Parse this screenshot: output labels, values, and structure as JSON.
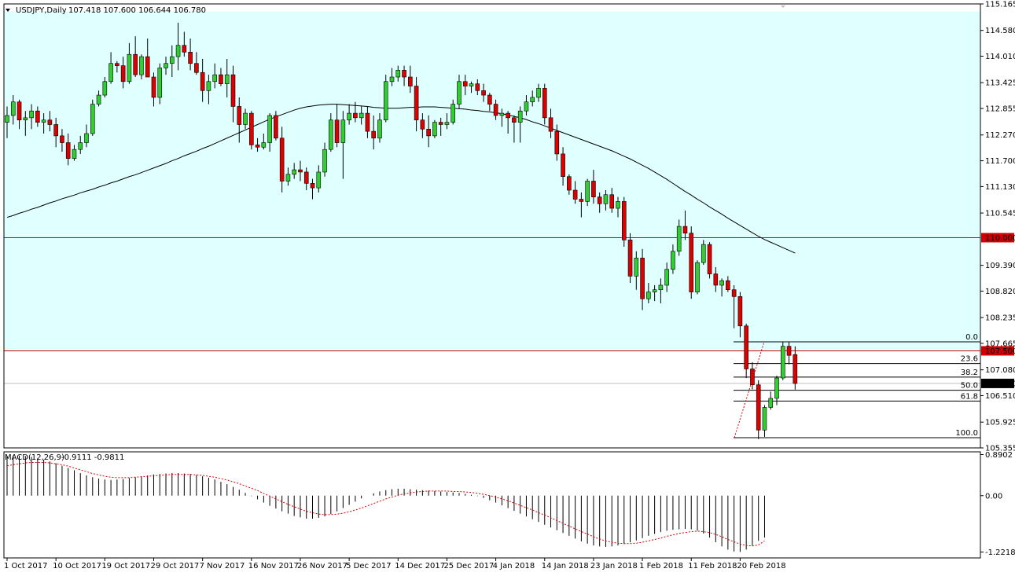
{
  "header": {
    "symbol": "USDJPY,Daily",
    "ohlc": "107.418 107.600 106.644 106.780"
  },
  "macd_header": {
    "name": "MACD(12,26,9)",
    "values": "-0.9111 -0.9811"
  },
  "colors": {
    "bull": "#32cd32",
    "bear": "#dc0000",
    "zone": "#e0ffff",
    "level_line": "#cc0000",
    "ma_line": "#000000",
    "signal_line": "#dc0000"
  },
  "chart_data": [
    {
      "type": "candlestick",
      "ylim": [
        105.355,
        115.165
      ],
      "y_ticks": [
        "115.165",
        "114.580",
        "114.010",
        "113.425",
        "112.855",
        "112.270",
        "111.700",
        "111.130",
        "110.545",
        "109.390",
        "108.820",
        "108.235",
        "107.665",
        "107.080",
        "106.510",
        "105.925",
        "105.355"
      ],
      "x_ticks": [
        "1 Oct 2017",
        "10 Oct 2017",
        "19 Oct 2017",
        "29 Oct 2017",
        "7 Nov 2017",
        "16 Nov 2017",
        "26 Nov 2017",
        "5 Dec 2017",
        "14 Dec 2017",
        "25 Dec 2017",
        "4 Jan 2018",
        "14 Jan 2018",
        "23 Jan 2018",
        "1 Feb 2018",
        "11 Feb 2018",
        "20 Feb 2018"
      ],
      "x_tick_index": [
        0,
        8,
        16,
        24,
        32,
        40,
        48,
        56,
        64,
        72,
        80,
        88,
        96,
        104,
        112,
        120
      ],
      "candles": [
        [
          112.55,
          112.9,
          112.2,
          112.7
        ],
        [
          112.7,
          113.15,
          112.5,
          113.0
        ],
        [
          113.0,
          113.05,
          112.4,
          112.6
        ],
        [
          112.6,
          112.8,
          112.25,
          112.65
        ],
        [
          112.65,
          112.95,
          112.4,
          112.8
        ],
        [
          112.8,
          112.9,
          112.45,
          112.55
        ],
        [
          112.55,
          112.75,
          112.3,
          112.6
        ],
        [
          112.6,
          112.8,
          112.35,
          112.5
        ],
        [
          112.5,
          112.65,
          112.0,
          112.25
        ],
        [
          112.25,
          112.4,
          111.9,
          112.1
        ],
        [
          112.1,
          112.3,
          111.6,
          111.75
        ],
        [
          111.75,
          112.05,
          111.7,
          111.95
        ],
        [
          111.95,
          112.25,
          111.85,
          112.1
        ],
        [
          112.1,
          112.5,
          112.0,
          112.3
        ],
        [
          112.3,
          113.05,
          112.25,
          112.95
        ],
        [
          112.95,
          113.25,
          112.9,
          113.15
        ],
        [
          113.15,
          113.55,
          113.1,
          113.45
        ],
        [
          113.45,
          114.1,
          113.4,
          113.85
        ],
        [
          113.85,
          113.9,
          113.65,
          113.8
        ],
        [
          113.8,
          114.0,
          113.3,
          113.45
        ],
        [
          113.45,
          114.3,
          113.4,
          114.05
        ],
        [
          114.05,
          114.45,
          113.55,
          113.6
        ],
        [
          113.6,
          114.05,
          113.5,
          114.0
        ],
        [
          114.0,
          114.4,
          113.6,
          113.55
        ],
        [
          113.55,
          113.65,
          112.9,
          113.1
        ],
        [
          113.1,
          113.85,
          112.95,
          113.75
        ],
        [
          113.75,
          114.0,
          113.6,
          113.85
        ],
        [
          113.85,
          114.25,
          113.55,
          114.0
        ],
        [
          114.0,
          114.75,
          113.7,
          114.25
        ],
        [
          114.25,
          114.55,
          114.0,
          114.1
        ],
        [
          114.1,
          114.4,
          113.7,
          113.85
        ],
        [
          113.85,
          114.1,
          113.6,
          113.65
        ],
        [
          113.65,
          113.95,
          113.0,
          113.25
        ],
        [
          113.25,
          113.6,
          112.95,
          113.45
        ],
        [
          113.45,
          113.85,
          113.3,
          113.6
        ],
        [
          113.6,
          113.75,
          113.35,
          113.4
        ],
        [
          113.4,
          113.95,
          113.1,
          113.6
        ],
        [
          113.6,
          113.8,
          112.55,
          112.9
        ],
        [
          112.9,
          113.1,
          112.1,
          112.5
        ],
        [
          112.5,
          112.85,
          112.4,
          112.75
        ],
        [
          112.75,
          112.8,
          111.95,
          112.05
        ],
        [
          112.05,
          112.2,
          111.9,
          112.0
        ],
        [
          112.0,
          112.3,
          111.95,
          112.1
        ],
        [
          112.1,
          112.75,
          111.9,
          112.7
        ],
        [
          112.7,
          112.8,
          112.15,
          112.2
        ],
        [
          112.2,
          112.45,
          111.0,
          111.25
        ],
        [
          111.25,
          111.55,
          111.15,
          111.4
        ],
        [
          111.4,
          111.65,
          111.3,
          111.5
        ],
        [
          111.5,
          111.7,
          111.25,
          111.45
        ],
        [
          111.45,
          111.55,
          111.05,
          111.2
        ],
        [
          111.2,
          111.3,
          110.85,
          111.1
        ],
        [
          111.1,
          111.6,
          111.0,
          111.45
        ],
        [
          111.45,
          112.1,
          111.35,
          111.95
        ],
        [
          111.95,
          112.75,
          111.9,
          112.6
        ],
        [
          112.6,
          112.95,
          112.0,
          112.1
        ],
        [
          112.1,
          112.8,
          111.3,
          112.6
        ],
        [
          112.6,
          112.95,
          112.5,
          112.75
        ],
        [
          112.75,
          113.0,
          112.55,
          112.65
        ],
        [
          112.65,
          112.9,
          112.5,
          112.75
        ],
        [
          112.75,
          112.9,
          112.2,
          112.35
        ],
        [
          112.35,
          112.7,
          111.95,
          112.2
        ],
        [
          112.2,
          112.75,
          112.1,
          112.6
        ],
        [
          112.6,
          113.6,
          112.55,
          113.45
        ],
        [
          113.45,
          113.75,
          113.35,
          113.55
        ],
        [
          113.55,
          113.8,
          113.45,
          113.7
        ],
        [
          113.7,
          113.8,
          113.35,
          113.55
        ],
        [
          113.55,
          113.8,
          113.2,
          113.35
        ],
        [
          113.35,
          113.55,
          112.35,
          112.6
        ],
        [
          112.6,
          112.75,
          112.2,
          112.4
        ],
        [
          112.4,
          112.7,
          112.0,
          112.25
        ],
        [
          112.25,
          112.6,
          112.2,
          112.55
        ],
        [
          112.55,
          112.65,
          112.25,
          112.5
        ],
        [
          112.5,
          112.75,
          112.4,
          112.55
        ],
        [
          112.55,
          113.05,
          112.5,
          112.95
        ],
        [
          112.95,
          113.6,
          112.85,
          113.45
        ],
        [
          113.45,
          113.6,
          113.15,
          113.35
        ],
        [
          113.35,
          113.45,
          113.2,
          113.4
        ],
        [
          113.4,
          113.5,
          113.15,
          113.25
        ],
        [
          113.25,
          113.4,
          113.0,
          113.15
        ],
        [
          113.15,
          113.2,
          112.8,
          112.95
        ],
        [
          112.95,
          113.05,
          112.6,
          112.7
        ],
        [
          112.7,
          112.85,
          112.45,
          112.75
        ],
        [
          112.75,
          112.8,
          112.3,
          112.65
        ],
        [
          112.65,
          112.7,
          112.1,
          112.55
        ],
        [
          112.55,
          112.9,
          112.1,
          112.8
        ],
        [
          112.8,
          113.15,
          112.7,
          113.0
        ],
        [
          113.0,
          113.25,
          112.9,
          113.1
        ],
        [
          113.1,
          113.4,
          113.0,
          113.3
        ],
        [
          113.3,
          113.4,
          112.5,
          112.65
        ],
        [
          112.65,
          112.85,
          112.2,
          112.35
        ],
        [
          112.35,
          112.5,
          111.7,
          111.85
        ],
        [
          111.85,
          112.0,
          111.15,
          111.35
        ],
        [
          111.35,
          111.4,
          110.95,
          111.05
        ],
        [
          111.05,
          111.25,
          110.75,
          110.85
        ],
        [
          110.85,
          111.0,
          110.45,
          110.8
        ],
        [
          110.8,
          111.3,
          110.7,
          111.25
        ],
        [
          111.25,
          111.5,
          110.75,
          110.9
        ],
        [
          110.9,
          111.0,
          110.55,
          110.75
        ],
        [
          110.75,
          111.05,
          110.6,
          110.95
        ],
        [
          110.95,
          111.1,
          110.55,
          110.65
        ],
        [
          110.65,
          110.9,
          110.45,
          110.8
        ],
        [
          110.8,
          110.9,
          109.8,
          109.95
        ],
        [
          109.95,
          110.1,
          109.0,
          109.15
        ],
        [
          109.15,
          109.7,
          108.85,
          109.55
        ],
        [
          109.55,
          109.75,
          108.4,
          108.65
        ],
        [
          108.65,
          109.0,
          108.55,
          108.8
        ],
        [
          108.8,
          108.95,
          108.6,
          108.85
        ],
        [
          108.85,
          109.1,
          108.55,
          108.95
        ],
        [
          108.95,
          109.45,
          108.8,
          109.3
        ],
        [
          109.3,
          109.85,
          109.2,
          109.7
        ],
        [
          109.7,
          110.4,
          109.6,
          110.25
        ],
        [
          110.25,
          110.6,
          109.95,
          110.1
        ],
        [
          110.1,
          110.25,
          108.65,
          108.8
        ],
        [
          108.8,
          109.5,
          108.75,
          109.45
        ],
        [
          109.45,
          109.95,
          109.4,
          109.85
        ],
        [
          109.85,
          109.9,
          109.1,
          109.2
        ],
        [
          109.2,
          109.35,
          108.8,
          108.95
        ],
        [
          108.95,
          109.1,
          108.7,
          109.05
        ],
        [
          109.05,
          109.15,
          108.8,
          108.85
        ],
        [
          108.85,
          108.95,
          108.0,
          108.7
        ],
        [
          108.7,
          108.8,
          107.8,
          108.05
        ],
        [
          108.05,
          108.1,
          106.9,
          107.1
        ],
        [
          107.1,
          107.25,
          106.65,
          106.75
        ],
        [
          106.75,
          106.85,
          105.55,
          105.75
        ],
        [
          105.75,
          106.3,
          105.6,
          106.25
        ],
        [
          106.25,
          106.6,
          106.2,
          106.45
        ],
        [
          106.45,
          106.95,
          106.3,
          106.9
        ],
        [
          106.9,
          107.7,
          106.85,
          107.6
        ],
        [
          107.6,
          107.7,
          107.2,
          107.4
        ],
        [
          107.418,
          107.6,
          106.644,
          106.78
        ]
      ],
      "ma": [
        110.45,
        110.49,
        110.54,
        110.58,
        110.63,
        110.67,
        110.72,
        110.77,
        110.81,
        110.86,
        110.9,
        110.94,
        110.99,
        111.03,
        111.07,
        111.12,
        111.16,
        111.21,
        111.25,
        111.3,
        111.35,
        111.39,
        111.44,
        111.49,
        111.54,
        111.59,
        111.64,
        111.7,
        111.75,
        111.81,
        111.86,
        111.91,
        111.97,
        112.02,
        112.08,
        112.14,
        112.2,
        112.26,
        112.32,
        112.38,
        112.44,
        112.5,
        112.56,
        112.62,
        112.67,
        112.72,
        112.77,
        112.82,
        112.86,
        112.89,
        112.91,
        112.93,
        112.94,
        112.95,
        112.95,
        112.94,
        112.93,
        112.92,
        112.91,
        112.9,
        112.88,
        112.87,
        112.86,
        112.86,
        112.86,
        112.87,
        112.88,
        112.88,
        112.89,
        112.89,
        112.89,
        112.88,
        112.87,
        112.86,
        112.85,
        112.84,
        112.82,
        112.81,
        112.79,
        112.78,
        112.76,
        112.74,
        112.71,
        112.68,
        112.65,
        112.61,
        112.56,
        112.52,
        112.47,
        112.42,
        112.37,
        112.32,
        112.27,
        112.22,
        112.17,
        112.12,
        112.07,
        112.02,
        111.97,
        111.92,
        111.86,
        111.8,
        111.74,
        111.67,
        111.6,
        111.53,
        111.45,
        111.37,
        111.29,
        111.2,
        111.11,
        111.02,
        110.94,
        110.85,
        110.77,
        110.68,
        110.6,
        110.52,
        110.43,
        110.35,
        110.27,
        110.19,
        110.11,
        110.03,
        109.96,
        109.9,
        109.84,
        109.78,
        109.72,
        109.66
      ],
      "levels": [
        {
          "label": "110.000",
          "value": 110.0
        },
        {
          "label": "107.500",
          "value": 107.5
        }
      ],
      "last_price": {
        "label": "106.780",
        "value": 106.78
      },
      "fibonacci": [
        {
          "label": "0.0",
          "value": 107.7
        },
        {
          "label": "23.6",
          "value": 107.22
        },
        {
          "label": "38.2",
          "value": 106.92
        },
        {
          "label": "50.0",
          "value": 106.63
        },
        {
          "label": "61.8",
          "value": 106.39
        },
        {
          "label": "100.0",
          "value": 105.58
        }
      ],
      "zone": {
        "from": 107.5,
        "to": 115.0
      }
    },
    {
      "type": "histogram+line",
      "name": "MACD(12,26,9)",
      "ylim": [
        -1.35,
        0.95
      ],
      "y_ticks": [
        "0.8902",
        "0.00",
        "-1.2218"
      ],
      "macd": [
        0.86,
        0.87,
        0.87,
        0.86,
        0.84,
        0.81,
        0.78,
        0.74,
        0.7,
        0.65,
        0.6,
        0.55,
        0.49,
        0.44,
        0.4,
        0.37,
        0.35,
        0.34,
        0.35,
        0.36,
        0.38,
        0.4,
        0.42,
        0.44,
        0.46,
        0.47,
        0.48,
        0.49,
        0.49,
        0.48,
        0.47,
        0.45,
        0.42,
        0.39,
        0.35,
        0.3,
        0.25,
        0.19,
        0.13,
        0.06,
        -0.01,
        -0.08,
        -0.15,
        -0.22,
        -0.28,
        -0.34,
        -0.39,
        -0.44,
        -0.47,
        -0.5,
        -0.5,
        -0.48,
        -0.45,
        -0.4,
        -0.34,
        -0.27,
        -0.2,
        -0.13,
        -0.06,
        0.0,
        0.05,
        0.09,
        0.12,
        0.14,
        0.15,
        0.15,
        0.14,
        0.13,
        0.12,
        0.11,
        0.1,
        0.09,
        0.08,
        0.07,
        0.06,
        0.04,
        0.02,
        -0.01,
        -0.05,
        -0.1,
        -0.15,
        -0.21,
        -0.27,
        -0.33,
        -0.39,
        -0.45,
        -0.51,
        -0.57,
        -0.63,
        -0.69,
        -0.75,
        -0.81,
        -0.87,
        -0.93,
        -0.99,
        -1.04,
        -1.08,
        -1.1,
        -1.11,
        -1.1,
        -1.08,
        -1.05,
        -1.01,
        -0.97,
        -0.92,
        -0.87,
        -0.83,
        -0.79,
        -0.76,
        -0.74,
        -0.73,
        -0.72,
        -0.73,
        -0.76,
        -0.82,
        -0.91,
        -1.01,
        -1.1,
        -1.17,
        -1.21,
        -1.22,
        -1.17,
        -1.08,
        -0.98,
        -0.91
      ],
      "signal": [
        0.65,
        0.67,
        0.69,
        0.71,
        0.72,
        0.72,
        0.72,
        0.71,
        0.69,
        0.67,
        0.64,
        0.6,
        0.56,
        0.52,
        0.48,
        0.45,
        0.42,
        0.4,
        0.39,
        0.39,
        0.39,
        0.4,
        0.41,
        0.42,
        0.43,
        0.44,
        0.45,
        0.46,
        0.46,
        0.46,
        0.46,
        0.45,
        0.44,
        0.42,
        0.4,
        0.37,
        0.34,
        0.3,
        0.26,
        0.21,
        0.16,
        0.11,
        0.05,
        -0.01,
        -0.07,
        -0.13,
        -0.19,
        -0.24,
        -0.29,
        -0.34,
        -0.37,
        -0.4,
        -0.41,
        -0.41,
        -0.4,
        -0.38,
        -0.35,
        -0.31,
        -0.27,
        -0.22,
        -0.17,
        -0.12,
        -0.07,
        -0.03,
        0.01,
        0.04,
        0.06,
        0.08,
        0.09,
        0.1,
        0.1,
        0.1,
        0.1,
        0.09,
        0.09,
        0.08,
        0.07,
        0.05,
        0.03,
        0.0,
        -0.03,
        -0.07,
        -0.11,
        -0.16,
        -0.21,
        -0.26,
        -0.31,
        -0.37,
        -0.42,
        -0.48,
        -0.54,
        -0.6,
        -0.66,
        -0.72,
        -0.78,
        -0.83,
        -0.89,
        -0.94,
        -0.98,
        -1.01,
        -1.03,
        -1.04,
        -1.04,
        -1.03,
        -1.01,
        -0.98,
        -0.95,
        -0.92,
        -0.88,
        -0.85,
        -0.82,
        -0.8,
        -0.78,
        -0.77,
        -0.78,
        -0.8,
        -0.84,
        -0.89,
        -0.95,
        -1.0,
        -1.05,
        -1.08,
        -1.09,
        -1.07,
        -0.98
      ]
    }
  ]
}
